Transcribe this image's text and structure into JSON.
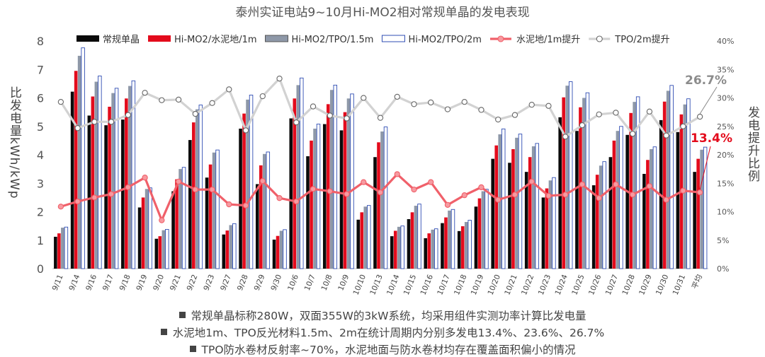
{
  "chart_data": {
    "type": "bar",
    "title": "泰州实证电站9~10月Hi-MO2相对常规单晶的发电表现",
    "ylabel": "比发电量kWh/kWp",
    "y2label": "发电提升比例",
    "ylim": [
      0,
      8
    ],
    "y2lim": [
      0,
      0.4
    ],
    "yticks": [
      "0",
      "1",
      "2",
      "3",
      "4",
      "5",
      "6",
      "7",
      "8"
    ],
    "y2ticks": [
      "0%",
      "5%",
      "10%",
      "15%",
      "20%",
      "25%",
      "30%",
      "35%",
      "40%"
    ],
    "categories": [
      "9/11",
      "9/14",
      "9/16",
      "9/17",
      "9/18",
      "9/19",
      "9/20",
      "9/21",
      "9/22",
      "9/23",
      "9/27",
      "9/28",
      "9/29",
      "9/30",
      "10/6",
      "10/7",
      "10/8",
      "10/9",
      "10/10",
      "10/13",
      "10/14",
      "10/15",
      "10/16",
      "10/17",
      "10/18",
      "10/19",
      "10/20",
      "10/21",
      "10/22",
      "10/23",
      "10/24",
      "10/25",
      "10/26",
      "10/27",
      "10/28",
      "10/29",
      "10/30",
      "10/31",
      "平均"
    ],
    "series": [
      {
        "name": "常规单晶",
        "kind": "bar",
        "color": "#0a0a0a",
        "values": [
          1.12,
          6.22,
          5.38,
          5.04,
          5.24,
          2.15,
          1.05,
          2.72,
          4.52,
          3.2,
          1.2,
          4.92,
          2.97,
          1.02,
          5.28,
          3.95,
          5.08,
          4.86,
          1.72,
          3.92,
          1.14,
          1.74,
          1.07,
          1.6,
          1.32,
          2.18,
          3.86,
          3.72,
          3.4,
          2.5,
          5.32,
          4.84,
          2.93,
          3.92,
          4.7,
          3.33,
          5.22,
          4.8,
          3.4
        ]
      },
      {
        "name": "Hi-MO2/水泥地/1m",
        "kind": "bar",
        "color": "#e30b1c",
        "values": [
          1.24,
          6.95,
          6.05,
          5.69,
          5.98,
          2.5,
          1.14,
          3.14,
          5.14,
          3.66,
          1.34,
          5.45,
          3.63,
          1.15,
          5.98,
          4.5,
          5.78,
          5.5,
          1.98,
          4.44,
          1.33,
          1.98,
          1.24,
          1.8,
          1.49,
          2.47,
          4.33,
          4.2,
          3.92,
          2.82,
          6.02,
          5.67,
          3.3,
          4.5,
          5.47,
          3.82,
          5.87,
          5.42,
          3.86
        ]
      },
      {
        "name": "Hi-MO2/TPO/1.5m",
        "kind": "bar",
        "color": "#8e98a8",
        "values": [
          1.44,
          7.48,
          6.57,
          6.17,
          6.42,
          2.8,
          1.35,
          3.5,
          5.6,
          4.08,
          1.53,
          5.94,
          4.03,
          1.33,
          6.45,
          4.92,
          6.28,
          5.98,
          2.18,
          4.82,
          1.47,
          2.21,
          1.37,
          2.04,
          1.64,
          2.72,
          4.72,
          4.6,
          4.3,
          3.1,
          6.43,
          6.0,
          3.62,
          4.84,
          5.86,
          4.2,
          6.25,
          5.77,
          4.18
        ]
      },
      {
        "name": "Hi-MO2/TPO/2m",
        "kind": "bar",
        "color": "#ffffff",
        "stroke": "#2f4db3",
        "values": [
          1.46,
          7.76,
          6.77,
          6.34,
          6.6,
          2.84,
          1.38,
          3.56,
          5.75,
          4.17,
          1.58,
          6.1,
          4.1,
          1.37,
          6.7,
          5.08,
          6.45,
          6.14,
          2.22,
          4.98,
          1.5,
          2.27,
          1.4,
          2.08,
          1.7,
          2.79,
          4.91,
          4.73,
          4.4,
          3.2,
          6.57,
          6.18,
          3.76,
          5.0,
          6.04,
          4.28,
          6.44,
          5.97,
          4.27
        ]
      },
      {
        "name": "水泥地/1m提升",
        "kind": "line",
        "color": "#f0606a",
        "values": [
          0.109,
          0.118,
          0.125,
          0.131,
          0.143,
          0.16,
          0.085,
          0.153,
          0.139,
          0.139,
          0.113,
          0.111,
          0.154,
          0.124,
          0.118,
          0.14,
          0.136,
          0.131,
          0.152,
          0.134,
          0.166,
          0.139,
          0.152,
          0.112,
          0.129,
          0.143,
          0.121,
          0.13,
          0.153,
          0.128,
          0.13,
          0.148,
          0.124,
          0.148,
          0.13,
          0.145,
          0.121,
          0.137,
          0.134
        ]
      },
      {
        "name": "TPO/2m提升",
        "kind": "line",
        "color": "#d2d2d2",
        "values": [
          0.293,
          0.247,
          0.258,
          0.258,
          0.27,
          0.309,
          0.296,
          0.297,
          0.272,
          0.291,
          0.315,
          0.243,
          0.303,
          0.334,
          0.257,
          0.285,
          0.269,
          0.264,
          0.3,
          0.265,
          0.302,
          0.289,
          0.292,
          0.28,
          0.293,
          0.279,
          0.262,
          0.27,
          0.288,
          0.286,
          0.232,
          0.252,
          0.271,
          0.274,
          0.237,
          0.276,
          0.234,
          0.25,
          0.267
        ]
      }
    ],
    "annotations": [
      {
        "text": "26.7%",
        "series": "TPO/2m提升",
        "color": "#8c8c8c"
      },
      {
        "text": "13.4%",
        "series": "水泥地/1m提升",
        "color": "#e30b1c"
      }
    ],
    "legend_position": "top"
  },
  "notes": [
    "常规单晶标称280W，双面355W的3kW系统，均采用组件实测功率计算比发电量",
    "水泥地1m、TPO反光材料1.5m、2m在统计周期内分别多发电13.4%、23.6%、26.7%",
    "TPO防水卷材反射率~70%，水泥地面与防水卷材均存在覆盖面积偏小的情况"
  ],
  "note_bullet_color": "#444444"
}
